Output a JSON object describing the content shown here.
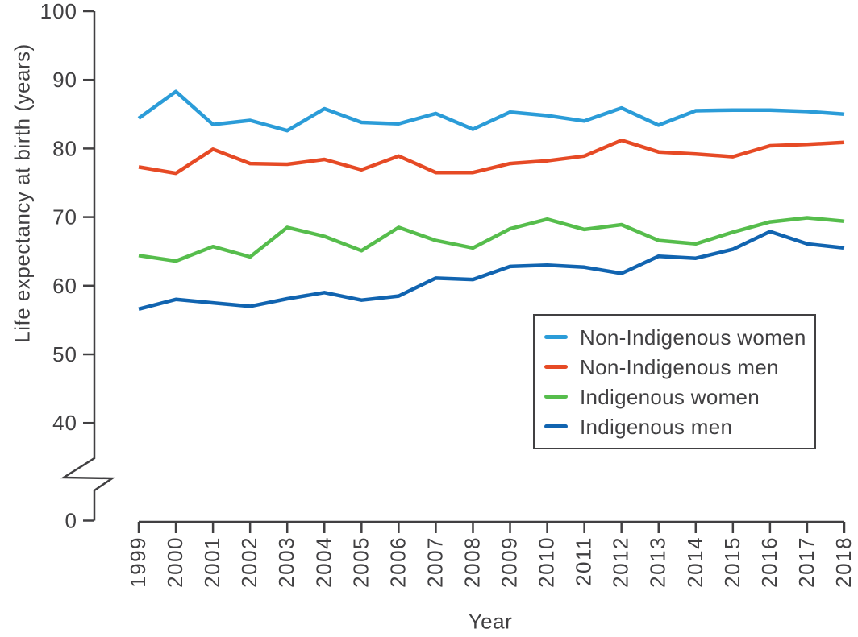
{
  "figure": {
    "background_color": "#ffffff",
    "axis_color": "#414042",
    "text_color": "#414042",
    "legend_border_color": "#414042"
  },
  "chart_data": {
    "type": "line",
    "title": "",
    "xlabel": "Year",
    "ylabel": "Life expectancy at birth (years)",
    "x": [
      "1999",
      "2000",
      "2001",
      "2002",
      "2003",
      "2004",
      "2005",
      "2006",
      "2007",
      "2008",
      "2009",
      "2010",
      "2011",
      "2012",
      "2013",
      "2014",
      "2015",
      "2016",
      "2017",
      "2018"
    ],
    "y_ticks": [
      0,
      40,
      50,
      60,
      70,
      80,
      90,
      100
    ],
    "ylim": [
      0,
      100
    ],
    "ylim_display": [
      40,
      100
    ],
    "axis_break": "y-axis broken between 0 and 40",
    "grid": false,
    "legend_position": "inside lower right",
    "series": [
      {
        "name": "Non-Indigenous women",
        "color": "#2B9CD8",
        "values": [
          84.4,
          88.3,
          83.5,
          84.1,
          82.6,
          85.8,
          83.8,
          83.6,
          85.1,
          82.8,
          85.3,
          84.8,
          84.0,
          85.9,
          83.4,
          85.5,
          85.6,
          85.6,
          85.4,
          85.0
        ]
      },
      {
        "name": "Non-Indigenous men",
        "color": "#E64A25",
        "values": [
          77.3,
          76.4,
          79.9,
          77.8,
          77.7,
          78.4,
          76.9,
          78.9,
          76.5,
          76.5,
          77.8,
          78.2,
          78.9,
          81.2,
          79.5,
          79.2,
          78.8,
          80.4,
          80.6,
          80.9
        ]
      },
      {
        "name": "Indigenous women",
        "color": "#56BD4C",
        "values": [
          64.4,
          63.6,
          65.7,
          64.2,
          68.5,
          67.2,
          65.1,
          68.5,
          66.6,
          65.5,
          68.3,
          69.7,
          68.2,
          68.9,
          66.6,
          66.1,
          67.8,
          69.3,
          69.9,
          69.4
        ]
      },
      {
        "name": "Indigenous men",
        "color": "#1164B0",
        "values": [
          56.6,
          58.0,
          57.5,
          57.0,
          58.1,
          59.0,
          57.9,
          58.5,
          61.1,
          60.9,
          62.8,
          63.0,
          62.7,
          61.8,
          64.3,
          64.0,
          65.3,
          67.9,
          66.1,
          65.5
        ]
      }
    ]
  }
}
